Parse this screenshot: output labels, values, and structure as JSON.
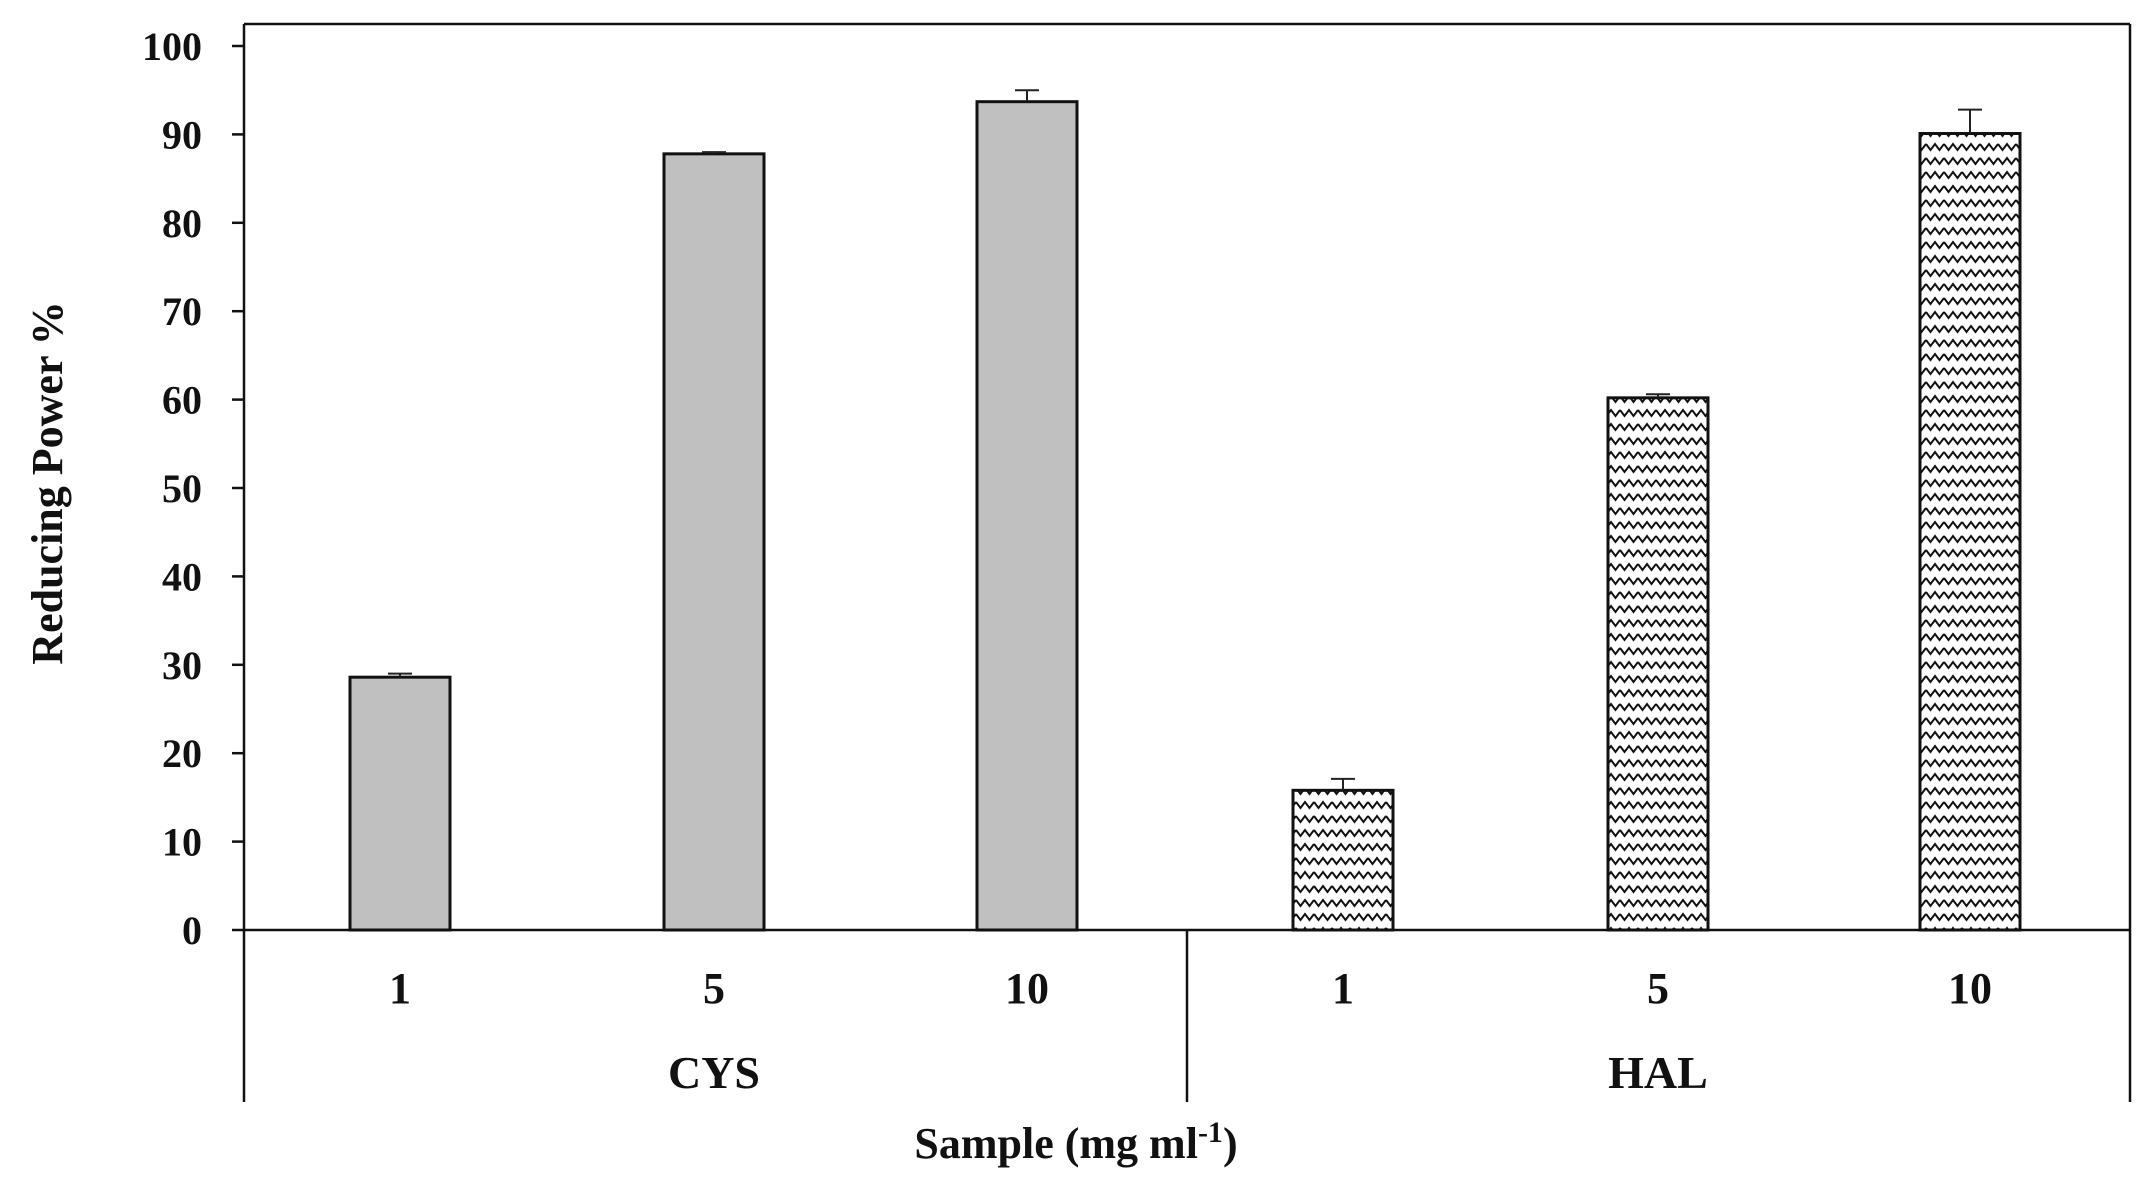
{
  "chart_data": {
    "type": "bar",
    "groups": [
      "CYS",
      "HAL"
    ],
    "categories": [
      "1",
      "5",
      "10"
    ],
    "series": [
      {
        "group": "CYS",
        "values": [
          28.6,
          87.8,
          93.7
        ],
        "errors": [
          0.4,
          0.2,
          1.3
        ],
        "fill": "gray"
      },
      {
        "group": "HAL",
        "values": [
          15.8,
          60.2,
          90.1
        ],
        "errors": [
          1.3,
          0.4,
          2.7
        ],
        "fill": "zigzag"
      }
    ],
    "xlabel": "Sample  (mg ml",
    "xlabel_sup": "-1",
    "xlabel_end": ")",
    "ylabel": "Reducing  Power  %",
    "ylim": [
      0,
      100
    ],
    "yticks": [
      0,
      10,
      20,
      30,
      40,
      50,
      60,
      70,
      80,
      90,
      100
    ],
    "grid": false,
    "legend": "none",
    "colors": {
      "bar_gray": "#c0c0c0",
      "outline": "#111111",
      "pattern": "#111111"
    }
  }
}
